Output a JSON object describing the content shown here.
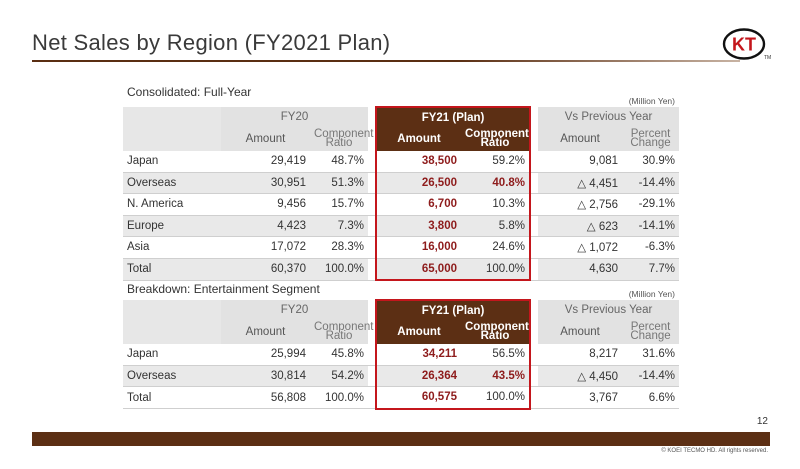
{
  "title": "Net Sales by Region (FY2021 Plan)",
  "logo_text": "KT",
  "logo_tm": "TM",
  "page_number": "12",
  "copyright": "© KOEI TECMO HD. All rights reserved.",
  "colors": {
    "accent": "#5c2f14",
    "highlight_border": "#c4161c",
    "plan_value": "#8e1c1c"
  },
  "headers": {
    "fy20": "FY20",
    "fy21": "FY21 (Plan)",
    "vs": "Vs Previous Year",
    "amount": "Amount",
    "component_ratio_1": "Component",
    "component_ratio_2": "Ratio",
    "percent_change_1": "Percent",
    "percent_change_2": "Change"
  },
  "consolidated": {
    "label": "Consolidated: Full-Year",
    "unit": "(Million Yen)",
    "rows": [
      {
        "region": "Japan",
        "fy20_amount": "29,419",
        "fy20_ratio": "48.7%",
        "fy21_amount": "38,500",
        "fy21_ratio": "59.2%",
        "vs_amount": "9,081",
        "vs_pct": "30.9%"
      },
      {
        "region": "Overseas",
        "fy20_amount": "30,951",
        "fy20_ratio": "51.3%",
        "fy21_amount": "26,500",
        "fy21_ratio": "40.8%",
        "vs_amount": "△ 4,451",
        "vs_pct": "-14.4%"
      },
      {
        "region": "N. America",
        "fy20_amount": "9,456",
        "fy20_ratio": "15.7%",
        "fy21_amount": "6,700",
        "fy21_ratio": "10.3%",
        "vs_amount": "△ 2,756",
        "vs_pct": "-29.1%"
      },
      {
        "region": "Europe",
        "fy20_amount": "4,423",
        "fy20_ratio": "7.3%",
        "fy21_amount": "3,800",
        "fy21_ratio": "5.8%",
        "vs_amount": "△ 623",
        "vs_pct": "-14.1%"
      },
      {
        "region": "Asia",
        "fy20_amount": "17,072",
        "fy20_ratio": "28.3%",
        "fy21_amount": "16,000",
        "fy21_ratio": "24.6%",
        "vs_amount": "△ 1,072",
        "vs_pct": "-6.3%"
      },
      {
        "region": "Total",
        "fy20_amount": "60,370",
        "fy20_ratio": "100.0%",
        "fy21_amount": "65,000",
        "fy21_ratio": "100.0%",
        "vs_amount": "4,630",
        "vs_pct": "7.7%"
      }
    ]
  },
  "entertainment": {
    "label": "Breakdown: Entertainment Segment",
    "unit": "(Million Yen)",
    "rows": [
      {
        "region": "Japan",
        "fy20_amount": "25,994",
        "fy20_ratio": "45.8%",
        "fy21_amount": "34,211",
        "fy21_ratio": "56.5%",
        "vs_amount": "8,217",
        "vs_pct": "31.6%"
      },
      {
        "region": "Overseas",
        "fy20_amount": "30,814",
        "fy20_ratio": "54.2%",
        "fy21_amount": "26,364",
        "fy21_ratio": "43.5%",
        "vs_amount": "△ 4,450",
        "vs_pct": "-14.4%"
      },
      {
        "region": "Total",
        "fy20_amount": "56,808",
        "fy20_ratio": "100.0%",
        "fy21_amount": "60,575",
        "fy21_ratio": "100.0%",
        "vs_amount": "3,767",
        "vs_pct": "6.6%"
      }
    ]
  }
}
